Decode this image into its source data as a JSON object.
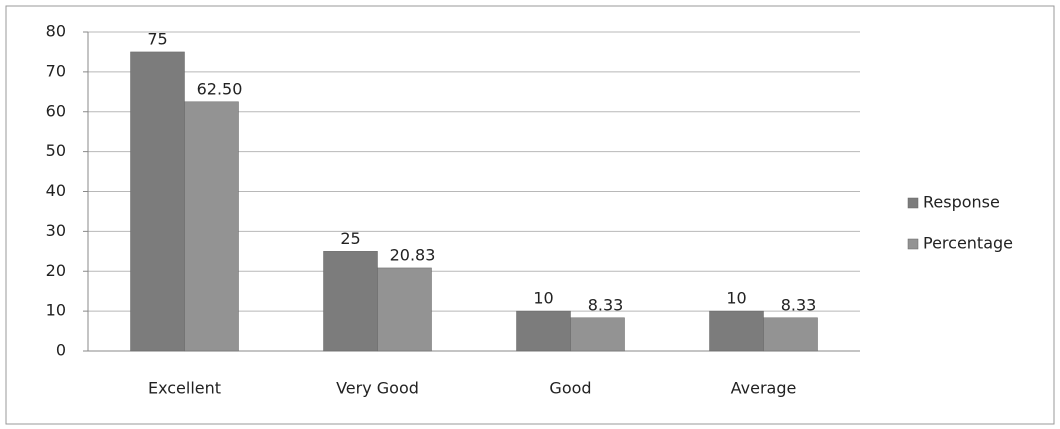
{
  "chart_data": {
    "type": "bar",
    "categories": [
      "Excellent",
      "Very Good",
      "Good",
      "Average"
    ],
    "series": [
      {
        "name": "Response",
        "color": "#7c7c7c",
        "values": [
          75,
          25,
          10,
          10
        ]
      },
      {
        "name": "Percentage",
        "color": "#939393",
        "values": [
          62.5,
          20.83,
          8.33,
          8.33
        ],
        "value_labels": [
          "62.50",
          "20.83",
          "8.33",
          "8.33"
        ]
      }
    ],
    "ylim": [
      0,
      80
    ],
    "yticks": [
      0,
      10,
      20,
      30,
      40,
      50,
      60,
      70,
      80
    ],
    "grid": true,
    "legend": "right"
  }
}
